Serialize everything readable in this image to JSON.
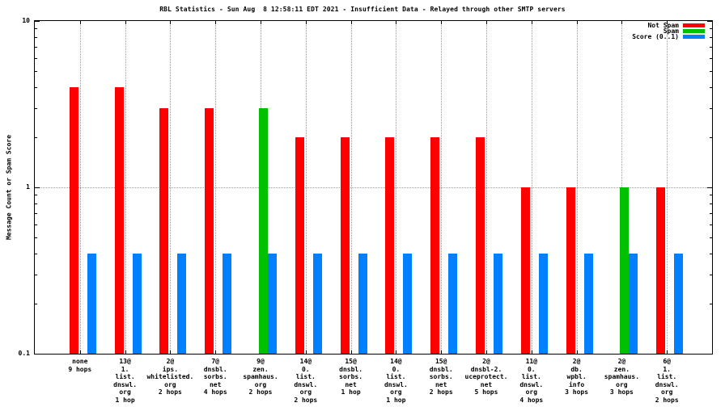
{
  "chart_data": {
    "type": "bar",
    "title": "RBL Statistics - Sun Aug  8 12:58:11 EDT 2021 - Insufficient Data - Relayed through other SMTP servers",
    "ylabel": "Message Count or Spam Score",
    "yscale": "log",
    "ylim": [
      0.1,
      10
    ],
    "yticks": [
      {
        "value": 0.1,
        "label": "0.1"
      },
      {
        "value": 1,
        "label": "1"
      },
      {
        "value": 10,
        "label": "10"
      }
    ],
    "grid": {
      "horizontal_at": [
        1
      ],
      "vertical": "category-centers",
      "style": "dotted"
    },
    "legend_position": "top-right-inside",
    "categories": [
      [
        "none",
        "9 hops"
      ],
      [
        "13@",
        "1.",
        "list.",
        "dnswl.",
        "org",
        "1 hop"
      ],
      [
        "2@",
        "ips.",
        "whitelisted.",
        "org",
        "2 hops"
      ],
      [
        "7@",
        "dnsbl.",
        "sorbs.",
        "net",
        "4 hops"
      ],
      [
        "9@",
        "zen.",
        "spamhaus.",
        "org",
        "2 hops"
      ],
      [
        "14@",
        "0.",
        "list.",
        "dnswl.",
        "org",
        "2 hops"
      ],
      [
        "15@",
        "dnsbl.",
        "sorbs.",
        "net",
        "1 hop"
      ],
      [
        "14@",
        "0.",
        "list.",
        "dnswl.",
        "org",
        "1 hop"
      ],
      [
        "15@",
        "dnsbl.",
        "sorbs.",
        "net",
        "2 hops"
      ],
      [
        "2@",
        "dnsbl-2.",
        "uceprotect.",
        "net",
        "5 hops"
      ],
      [
        "11@",
        "0.",
        "list.",
        "dnswl.",
        "org",
        "4 hops"
      ],
      [
        "2@",
        "db.",
        "wpbl.",
        "info",
        "3 hops"
      ],
      [
        "2@",
        "zen.",
        "spamhaus.",
        "org",
        "3 hops"
      ],
      [
        "6@",
        "1.",
        "list.",
        "dnswl.",
        "org",
        "2 hops"
      ]
    ],
    "series": [
      {
        "name": "Not Spam",
        "color": "#ff0000",
        "values": [
          4,
          4,
          3,
          3,
          0,
          2,
          2,
          2,
          2,
          2,
          1,
          1,
          0,
          1
        ]
      },
      {
        "name": "Spam",
        "color": "#00c000",
        "values": [
          0,
          0,
          0,
          0,
          3,
          0,
          0,
          0,
          0,
          0,
          0,
          0,
          1,
          0
        ]
      },
      {
        "name": "Score (0..1)",
        "color": "#0080ff",
        "values": [
          0.4,
          0.4,
          0.4,
          0.4,
          0.4,
          0.4,
          0.4,
          0.4,
          0.4,
          0.4,
          0.4,
          0.4,
          0.4,
          0.4
        ]
      }
    ],
    "colors": {
      "axis": "#000000",
      "grid": "#9a9a9a",
      "background": "#ffffff"
    }
  }
}
